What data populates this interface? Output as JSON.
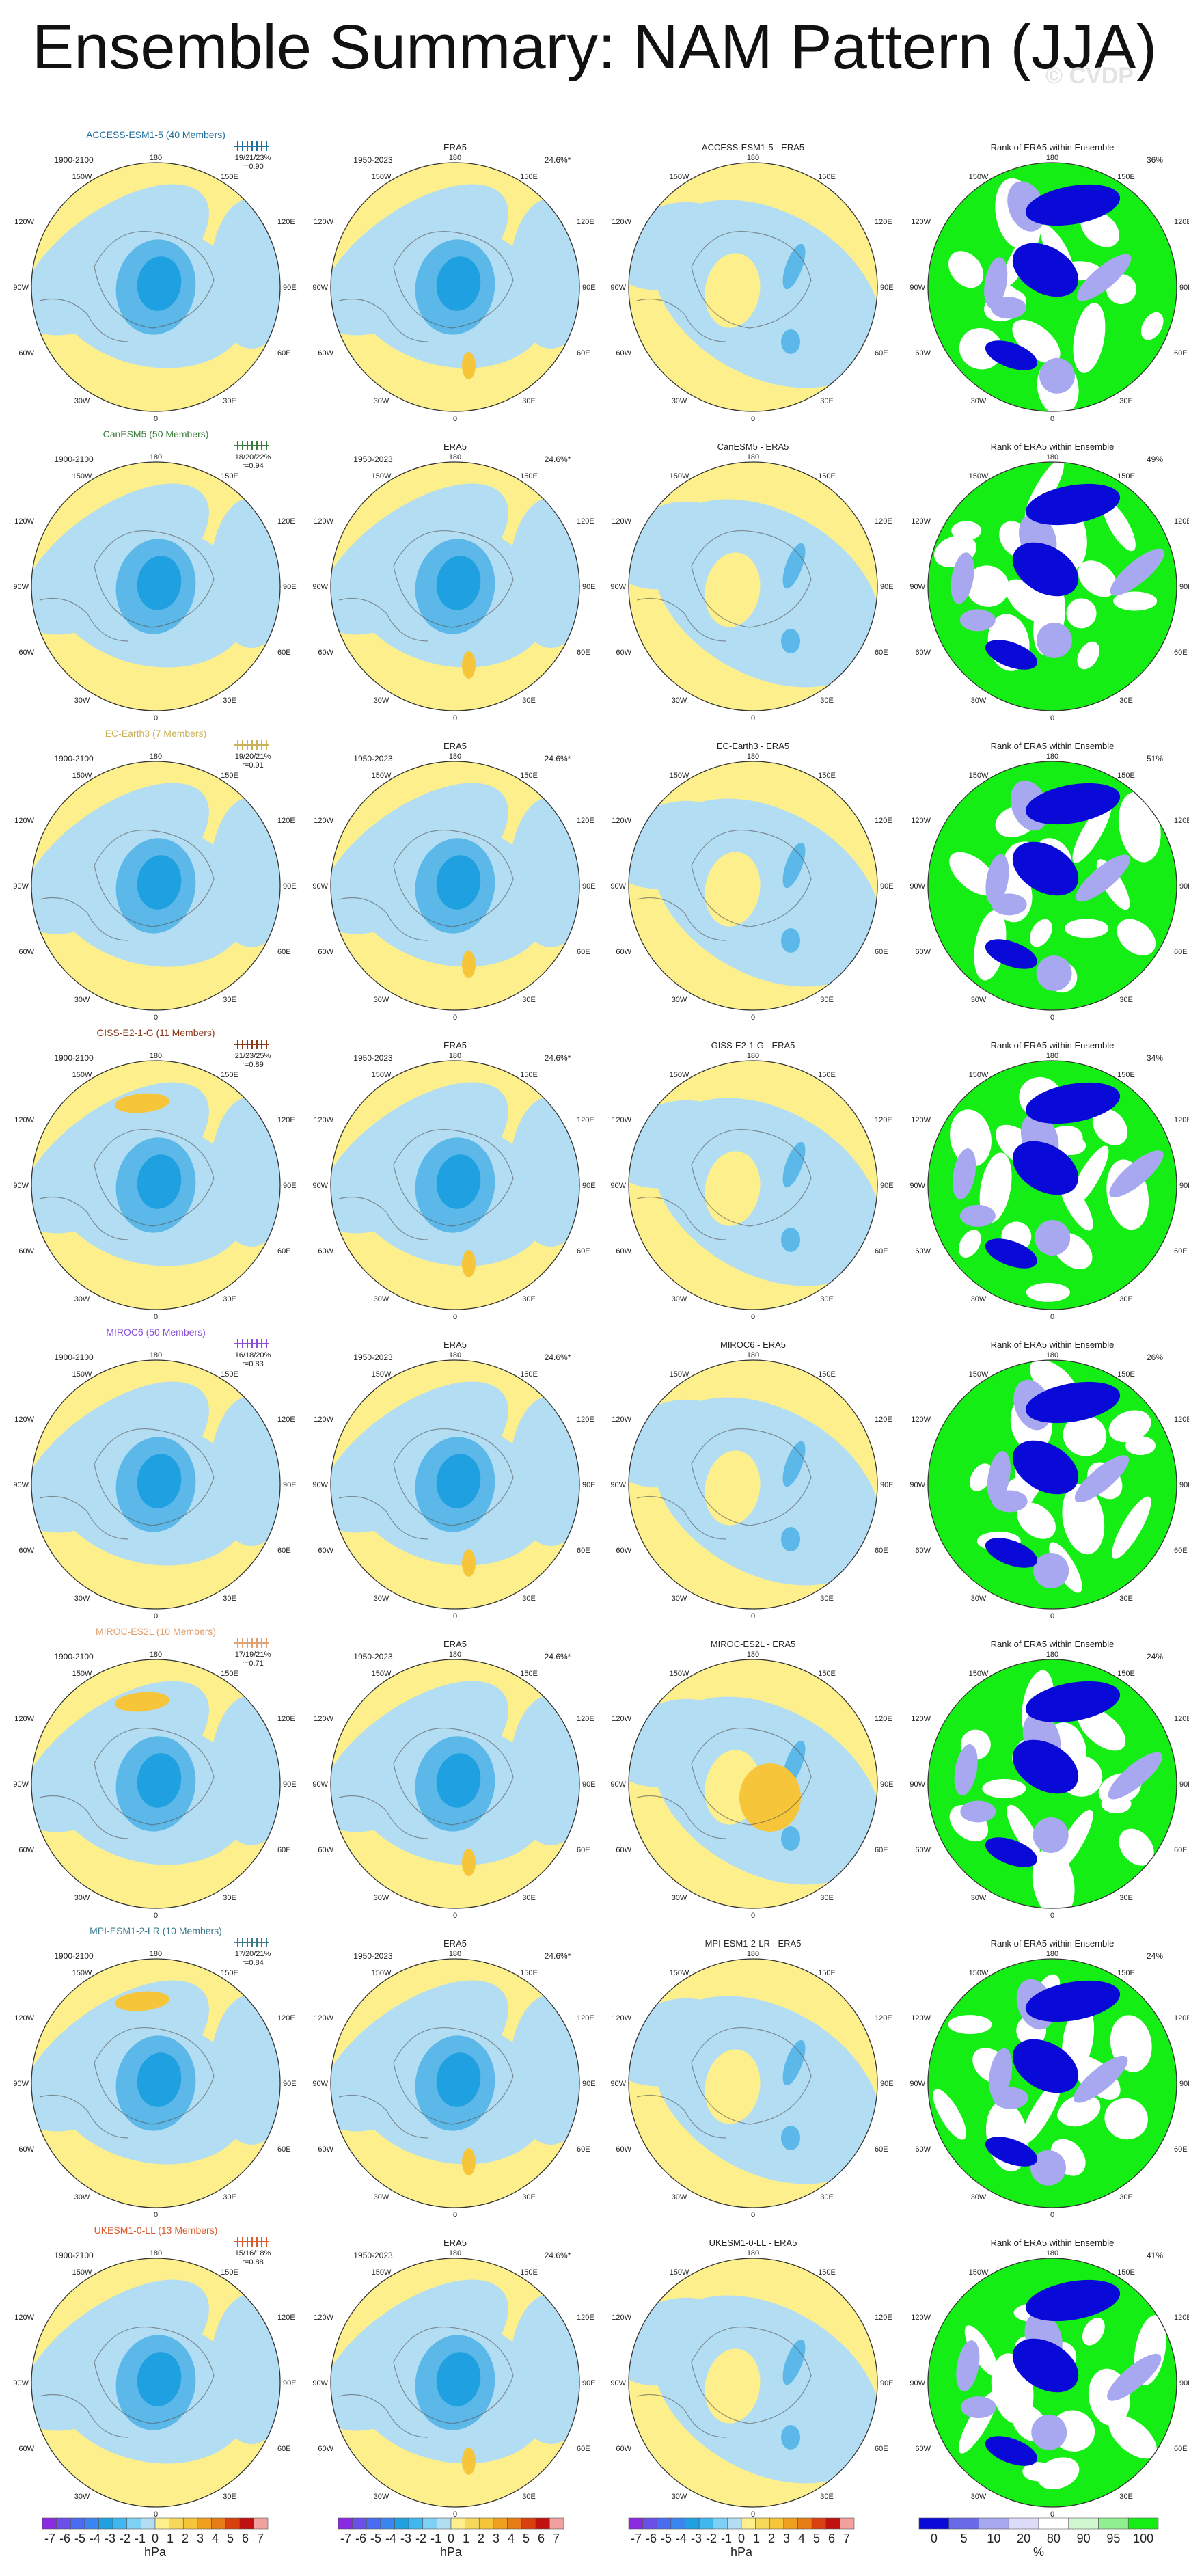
{
  "title": "Ensemble Summary: NAM Pattern (JJA)",
  "watermark": "© CVDP",
  "colors": {
    "positive": "#fdf08c",
    "negative": "#b3ddf2",
    "negative_strong": "#5cb8e8",
    "negative_core": "#1fa0e0",
    "positive_strong": "#f6c53a",
    "rank_green": "#14ee14",
    "rank_blue": "#0a0ad8",
    "rank_lightblue": "#a8a8f0",
    "rank_white": "#ffffff"
  },
  "column_labels": {
    "era5": "ERA5",
    "rank": "Rank of ERA5 within Ensemble",
    "model_period": "1900-2100",
    "obs_period": "1950-2023",
    "era5_pct": "24.6%*"
  },
  "map_labels": {
    "lon_top": "180",
    "lon_bottom": "0",
    "lon_150w": "150W",
    "lon_120w": "120W",
    "lon_90w": "90W",
    "lon_60w": "60W",
    "lon_30w": "30W",
    "lon_150e": "150E",
    "lon_120e": "120E",
    "lon_90e": "90E",
    "lon_60e": "60E",
    "lon_30e": "30E"
  },
  "rows": [
    {
      "model": "ACCESS-ESM1-5",
      "title": "ACCESS-ESM1-5 (40 Members)",
      "color": "#1f6f9f",
      "pct": "19/21/23%",
      "r": "r=0.90",
      "diff": "ACCESS-ESM1-5 - ERA5",
      "rank_pct": "36%"
    },
    {
      "model": "CanESM5",
      "title": "CanESM5 (50 Members)",
      "color": "#3a7a3a",
      "pct": "18/20/22%",
      "r": "r=0.94",
      "diff": "CanESM5 - ERA5",
      "rank_pct": "49%"
    },
    {
      "model": "EC-Earth3",
      "title": "EC-Earth3 (7 Members)",
      "color": "#c9b25a",
      "pct": "19/20/21%",
      "r": "r=0.91",
      "diff": "EC-Earth3 - ERA5",
      "rank_pct": "51%"
    },
    {
      "model": "GISS-E2-1-G",
      "title": "GISS-E2-1-G (11 Members)",
      "color": "#8b3a1a",
      "pct": "21/23/25%",
      "r": "r=0.89",
      "diff": "GISS-E2-1-G - ERA5",
      "rank_pct": "34%"
    },
    {
      "model": "MIROC6",
      "title": "MIROC6 (50 Members)",
      "color": "#8a4fd8",
      "pct": "16/18/20%",
      "r": "r=0.83",
      "diff": "MIROC6 - ERA5",
      "rank_pct": "26%"
    },
    {
      "model": "MIROC-ES2L",
      "title": "MIROC-ES2L (10 Members)",
      "color": "#e0a070",
      "pct": "17/19/21%",
      "r": "r=0.71",
      "diff": "MIROC-ES2L - ERA5",
      "rank_pct": "24%"
    },
    {
      "model": "MPI-ESM1-2-LR",
      "title": "MPI-ESM1-2-LR (10 Members)",
      "color": "#3a7a8a",
      "pct": "17/20/21%",
      "r": "r=0.84",
      "diff": "MPI-ESM1-2-LR - ERA5",
      "rank_pct": "24%"
    },
    {
      "model": "UKESM1-0-LL",
      "title": "UKESM1-0-LL (13 Members)",
      "color": "#d95a2a",
      "pct": "15/16/18%",
      "r": "r=0.88",
      "diff": "UKESM1-0-LL - ERA5",
      "rank_pct": "41%"
    }
  ],
  "colorbars": {
    "hpa_labels": [
      "-7",
      "-6",
      "-5",
      "-4",
      "-3",
      "-2",
      "-1",
      "0",
      "1",
      "2",
      "3",
      "4",
      "5",
      "6",
      "7"
    ],
    "hpa_colors": [
      "#8a2be2",
      "#6a4fe8",
      "#4b6cf0",
      "#3a86f0",
      "#1fa0e0",
      "#40b8ef",
      "#7fd0f5",
      "#b3ddf2",
      "#fdf08c",
      "#f8d85a",
      "#f6c53a",
      "#f0a020",
      "#e87d18",
      "#d94010",
      "#c01010",
      "#f2a0a0"
    ],
    "hpa_unit": "hPa",
    "rank_labels": [
      "0",
      "5",
      "10",
      "20",
      "80",
      "90",
      "95",
      "100"
    ],
    "rank_colors": [
      "#0a0ad8",
      "#6a6ae8",
      "#a8a8f0",
      "#dcdcf8",
      "#ffffff",
      "#d0f8d0",
      "#90f090",
      "#14ee14"
    ],
    "rank_unit": "%"
  }
}
